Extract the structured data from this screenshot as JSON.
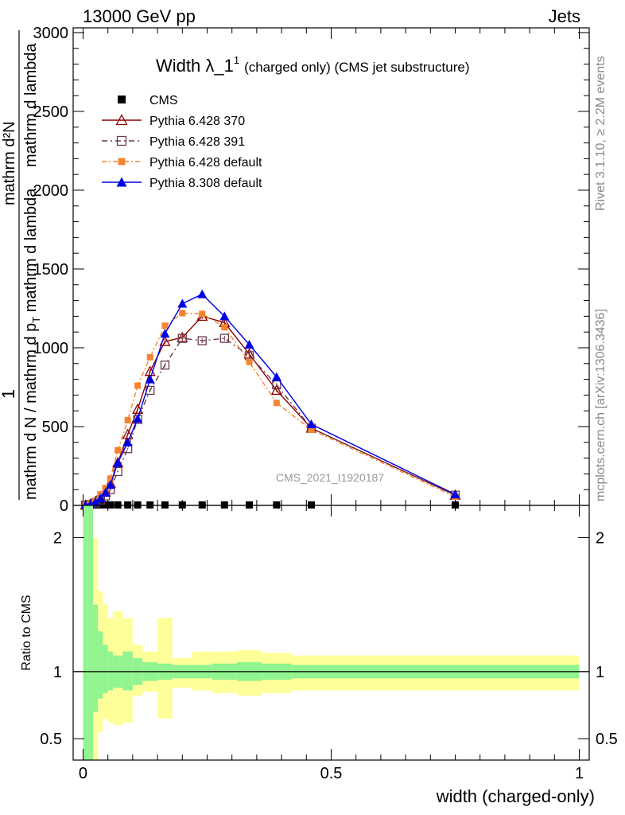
{
  "header": {
    "left": "13000 GeV pp",
    "right": "Jets"
  },
  "title": {
    "main": "Width λ_1",
    "superscript": "1",
    "sub": "(charged only) (CMS jet substructure)"
  },
  "watermark": "CMS_2021_I1920187",
  "side_labels": {
    "rivet": "Rivet 3.1.10, ≥ 2.2M events",
    "mcplots": "mcplots.cern.ch [arXiv:1306.3436]"
  },
  "y_label": {
    "numerator": "1",
    "denominator": "mathrm d N / mathrm d p",
    "denominator_sub": "T",
    "denominator_tail": " mathrm d lambda",
    "right_numerator": "mathrm d²N",
    "right_tail": "mathrm d lambda"
  },
  "ratio_ylabel": "Ratio to CMS",
  "x_label": "width (charged-only)",
  "colors": {
    "cms": "#000000",
    "p370": "#8b0000",
    "p391": "#6b3b4b",
    "p6def": "#f5832f",
    "p8def": "#0000e6",
    "band_inner": "#90f490",
    "band_outer": "#ffff99"
  },
  "chart_data": [
    {
      "type": "line",
      "xlim": [
        -0.02,
        1.02
      ],
      "ylim": [
        0,
        3030
      ],
      "x_ticks": [
        "0",
        "0.5",
        "1"
      ],
      "y_ticks": [
        "0",
        "500",
        "1000",
        "1500",
        "2000",
        "2500",
        "3000"
      ],
      "legend_position": "top-left",
      "grid": false,
      "series": [
        {
          "name": "CMS",
          "marker": "square",
          "x": [
            0.005,
            0.015,
            0.025,
            0.035,
            0.045,
            0.055,
            0.07,
            0.09,
            0.11,
            0.135,
            0.165,
            0.2,
            0.24,
            0.285,
            0.335,
            0.39,
            0.46,
            0.75
          ],
          "y": [
            3,
            3,
            3,
            3,
            3,
            3,
            3,
            3,
            3,
            3,
            3,
            3,
            3,
            3,
            3,
            3,
            3,
            3
          ]
        },
        {
          "name": "Pythia 6.428 370",
          "marker": "open-triangle",
          "x": [
            0.005,
            0.015,
            0.025,
            0.035,
            0.045,
            0.055,
            0.07,
            0.09,
            0.11,
            0.135,
            0.165,
            0.2,
            0.24,
            0.285,
            0.335,
            0.39,
            0.46,
            0.75
          ],
          "y": [
            2,
            8,
            25,
            50,
            85,
            140,
            270,
            450,
            610,
            850,
            1040,
            1065,
            1200,
            1160,
            960,
            730,
            490,
            65
          ]
        },
        {
          "name": "Pythia 6.428 391",
          "marker": "open-square",
          "x": [
            0.005,
            0.015,
            0.025,
            0.035,
            0.045,
            0.055,
            0.07,
            0.09,
            0.11,
            0.135,
            0.165,
            0.2,
            0.24,
            0.285,
            0.335,
            0.39,
            0.46,
            0.75
          ],
          "y": [
            2,
            6,
            15,
            35,
            60,
            100,
            215,
            360,
            545,
            730,
            890,
            1060,
            1045,
            1060,
            950,
            765,
            490,
            65
          ]
        },
        {
          "name": "Pythia 6.428 default",
          "marker": "filled-square",
          "x": [
            0.005,
            0.015,
            0.025,
            0.035,
            0.045,
            0.055,
            0.07,
            0.09,
            0.11,
            0.135,
            0.165,
            0.2,
            0.24,
            0.285,
            0.335,
            0.39,
            0.46,
            0.75
          ],
          "y": [
            3,
            10,
            30,
            70,
            110,
            170,
            350,
            540,
            760,
            940,
            1140,
            1220,
            1215,
            1130,
            910,
            650,
            480,
            55
          ]
        },
        {
          "name": "Pythia 8.308 default",
          "marker": "filled-triangle",
          "x": [
            0.005,
            0.015,
            0.025,
            0.035,
            0.045,
            0.055,
            0.07,
            0.09,
            0.11,
            0.135,
            0.165,
            0.2,
            0.24,
            0.285,
            0.335,
            0.39,
            0.46,
            0.75
          ],
          "y": [
            2,
            8,
            22,
            45,
            80,
            130,
            270,
            400,
            550,
            800,
            1090,
            1280,
            1340,
            1200,
            1020,
            815,
            515,
            70
          ]
        }
      ]
    },
    {
      "type": "area",
      "ylabel": "Ratio to CMS",
      "xlabel": "width (charged-only)",
      "xlim": [
        -0.02,
        1.02
      ],
      "ylim": [
        0.34,
        2.24
      ],
      "y_ticks": [
        "0.5",
        "1",
        "2"
      ],
      "x_ticks": [
        "0",
        "0.5",
        "1"
      ],
      "bins": [
        0.0,
        0.01,
        0.02,
        0.03,
        0.04,
        0.05,
        0.06,
        0.08,
        0.1,
        0.12,
        0.15,
        0.18,
        0.22,
        0.26,
        0.31,
        0.36,
        0.42,
        0.5,
        1.0
      ],
      "inner_band_upper": [
        2.5,
        2.5,
        1.5,
        1.3,
        1.2,
        1.15,
        1.12,
        1.15,
        1.1,
        1.07,
        1.06,
        1.05,
        1.05,
        1.06,
        1.07,
        1.06,
        1.05,
        1.05
      ],
      "inner_band_lower": [
        0.2,
        0.2,
        0.7,
        0.8,
        0.84,
        0.86,
        0.88,
        0.86,
        0.9,
        0.93,
        0.94,
        0.95,
        0.95,
        0.94,
        0.93,
        0.94,
        0.95,
        0.95
      ],
      "outer_band_upper": [
        2.5,
        2.5,
        2.0,
        1.6,
        1.5,
        1.4,
        1.45,
        1.4,
        1.2,
        1.15,
        1.4,
        1.1,
        1.15,
        1.15,
        1.16,
        1.14,
        1.12,
        1.12
      ],
      "outer_band_lower": [
        0.2,
        0.2,
        0.3,
        0.55,
        0.65,
        0.62,
        0.6,
        0.62,
        0.82,
        0.85,
        0.65,
        0.88,
        0.86,
        0.84,
        0.82,
        0.84,
        0.86,
        0.86
      ],
      "reference": 1
    }
  ]
}
